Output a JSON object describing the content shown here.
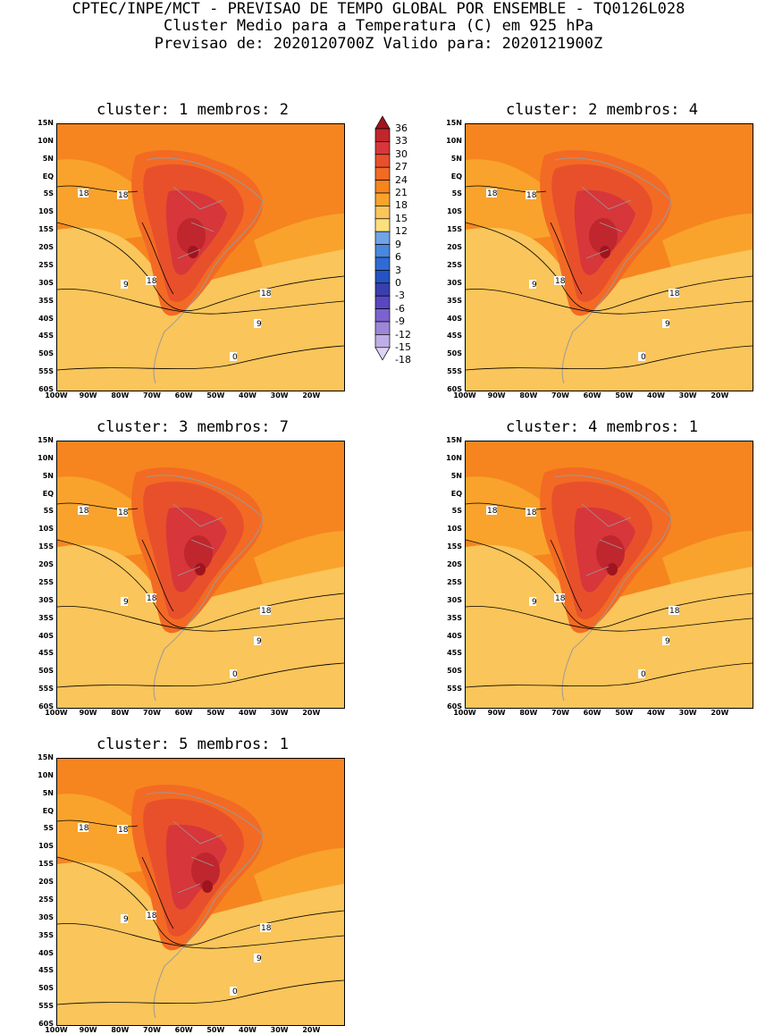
{
  "header": {
    "line1": "CPTEC/INPE/MCT - PREVISAO DE TEMPO GLOBAL POR ENSEMBLE - TQ0126L028",
    "line2": "Cluster Medio para a Temperatura (C) em 925 hPa",
    "line3": "Previsao de: 2020120700Z   Valido para: 2020121900Z"
  },
  "panels": [
    {
      "title": "cluster: 1   membros: 2"
    },
    {
      "title": "cluster: 2   membros: 4"
    },
    {
      "title": "cluster: 3   membros: 7"
    },
    {
      "title": "cluster: 4   membros: 1"
    },
    {
      "title": "cluster: 5   membros: 1"
    }
  ],
  "axes": {
    "lat_labels": [
      "15N",
      "10N",
      "5N",
      "EQ",
      "5S",
      "10S",
      "15S",
      "20S",
      "25S",
      "30S",
      "35S",
      "40S",
      "45S",
      "50S",
      "55S",
      "60S"
    ],
    "lon_labels": [
      "100W",
      "90W",
      "80W",
      "70W",
      "60W",
      "50W",
      "40W",
      "30W",
      "20W"
    ]
  },
  "contour_labels": {
    "c18": "18",
    "c9": "9",
    "c0": "0"
  },
  "colorbar": {
    "levels": [
      "36",
      "33",
      "30",
      "27",
      "24",
      "21",
      "18",
      "15",
      "12",
      "9",
      "6",
      "3",
      "0",
      "-3",
      "-6",
      "-9",
      "-12",
      "-15",
      "-18"
    ],
    "colors": [
      "#a0141e",
      "#c0262d",
      "#d7363a",
      "#e8502c",
      "#f36a24",
      "#f6851f",
      "#f9a32c",
      "#fac55a",
      "#fde07e",
      "#6fa4e6",
      "#4a87de",
      "#2f6bd3",
      "#2553c2",
      "#3a3fb0",
      "#5a46c0",
      "#7b63ce",
      "#9d86da",
      "#bfaee6",
      "#ddd3f2"
    ]
  }
}
